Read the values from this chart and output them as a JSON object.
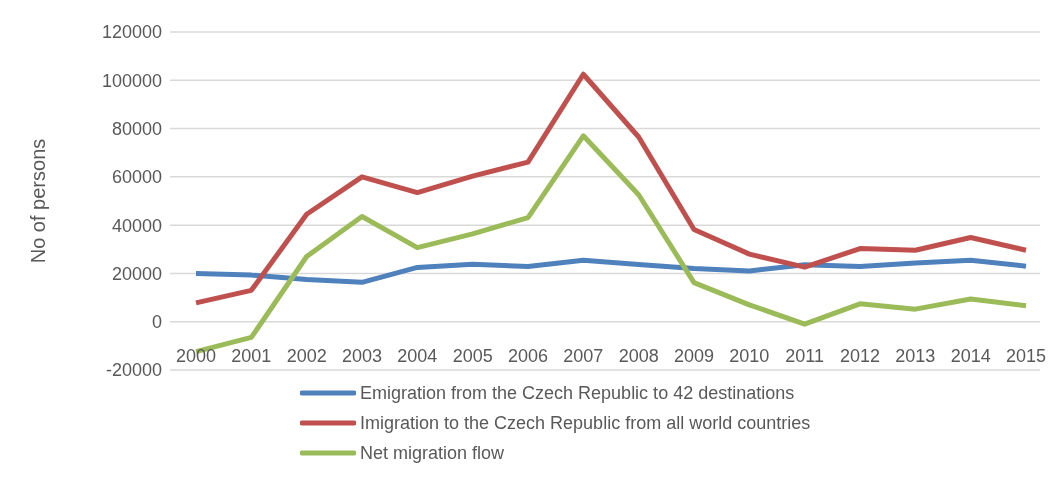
{
  "chart_data": {
    "type": "line",
    "ylabel": "No of persons",
    "categories": [
      "2000",
      "2001",
      "2002",
      "2003",
      "2004",
      "2005",
      "2006",
      "2007",
      "2008",
      "2009",
      "2010",
      "2011",
      "2012",
      "2013",
      "2014",
      "2015"
    ],
    "series": [
      {
        "name": "Emigration from the Czech Republic to 42 destinations",
        "color": "#4f81bd",
        "values": [
          20000,
          19300,
          17500,
          16300,
          22500,
          23800,
          22900,
          25500,
          23700,
          22000,
          21000,
          23600,
          22900,
          24300,
          25500,
          23000
        ]
      },
      {
        "name": "Imigration to the Czech Republic from all world countries",
        "color": "#c0504d",
        "values": [
          7800,
          13000,
          44500,
          60000,
          53500,
          60300,
          66100,
          102500,
          76500,
          38200,
          28000,
          22600,
          30300,
          29600,
          34900,
          29600
        ]
      },
      {
        "name": "Net migration flow",
        "color": "#9bbb59",
        "values": [
          -12400,
          -6500,
          27000,
          43600,
          30700,
          36400,
          43100,
          77000,
          52600,
          16200,
          7000,
          -1000,
          7400,
          5200,
          9400,
          6600
        ]
      }
    ],
    "ylim": [
      -20000,
      120000
    ],
    "yticks": [
      -20000,
      0,
      20000,
      40000,
      60000,
      80000,
      100000,
      120000
    ],
    "grid": "y",
    "legend": "bottom",
    "marker": "none",
    "line_style": "solid"
  }
}
